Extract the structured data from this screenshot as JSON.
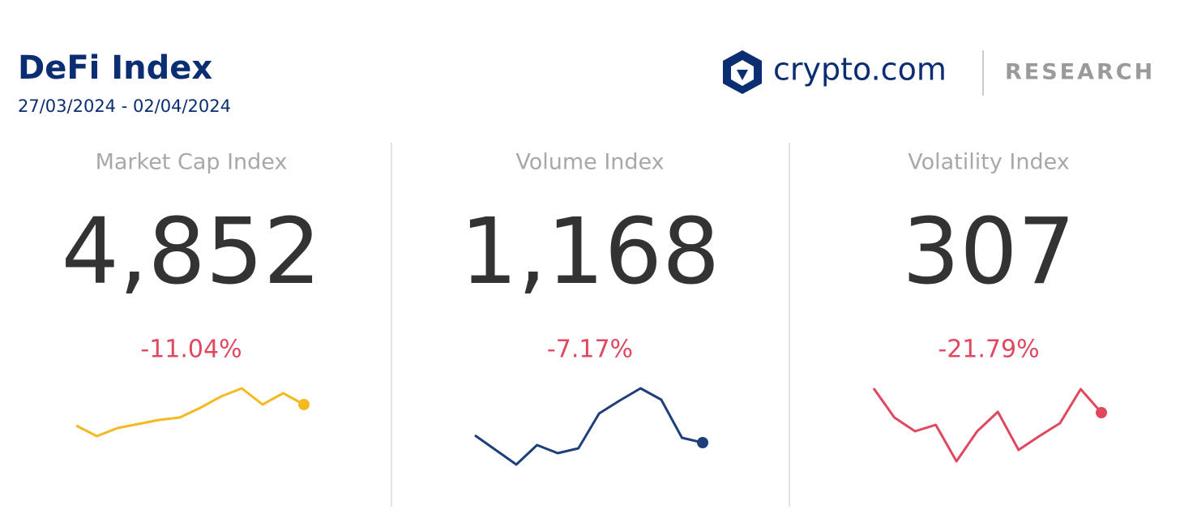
{
  "header": {
    "title": "DeFi Index",
    "date_range": "27/03/2024 - 02/04/2024"
  },
  "logo": {
    "brand": "crypto.com",
    "label": "RESEARCH"
  },
  "cards": [
    {
      "label": "Market Cap Index",
      "value": "4,852",
      "change": "-11.04%",
      "sparkline": {
        "type": "line",
        "color": "#f5b921",
        "ylim": [
          0,
          100
        ],
        "values": [
          50,
          37,
          47,
          52,
          57,
          60,
          72,
          86,
          96,
          76,
          90,
          76
        ]
      }
    },
    {
      "label": "Volume Index",
      "value": "1,168",
      "change": "-7.17%",
      "sparkline": {
        "type": "line",
        "color": "#1f3f7a",
        "ylim": [
          0,
          100
        ],
        "values": [
          38,
          20,
          2,
          26,
          16,
          22,
          65,
          81,
          96,
          82,
          35,
          29
        ]
      }
    },
    {
      "label": "Volatility Index",
      "value": "307",
      "change": "-21.79%",
      "sparkline": {
        "type": "line",
        "color": "#e0485f",
        "ylim": [
          0,
          100
        ],
        "values": [
          96,
          60,
          43,
          51,
          6,
          43,
          67,
          20,
          37,
          53,
          95,
          66
        ]
      }
    }
  ]
}
